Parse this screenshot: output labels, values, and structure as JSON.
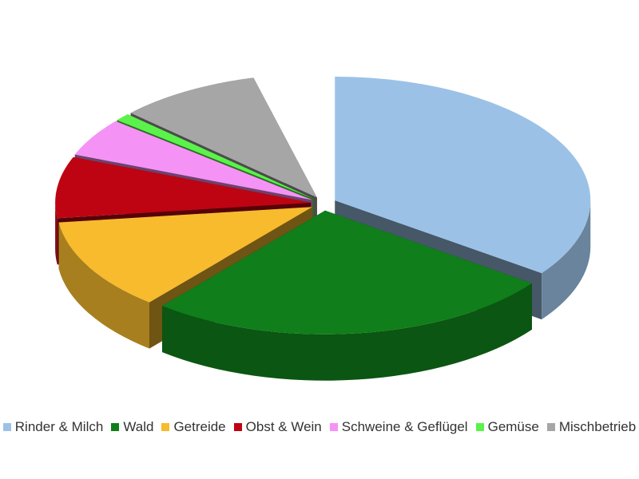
{
  "chart_data": {
    "type": "pie",
    "title": "",
    "three_d": true,
    "exploded": true,
    "start_angle_deg": -90,
    "direction": "clockwise",
    "legend_position": "bottom",
    "slices": [
      {
        "label": "Rinder & Milch",
        "value": 35,
        "color": "#9BC2E6"
      },
      {
        "label": "Wald",
        "value": 26,
        "color": "#107E1A"
      },
      {
        "label": "Getreide",
        "value": 12,
        "color": "#F7BB2D"
      },
      {
        "label": "Obst & Wein",
        "value": 8,
        "color": "#BE0412"
      },
      {
        "label": "Schweine & Geflügel",
        "value": 5,
        "color": "#F592F5"
      },
      {
        "label": "Gemüse",
        "value": 1,
        "color": "#5BF24B"
      },
      {
        "label": "Mischbetrieb",
        "value": 9,
        "color": "#A6A6A6"
      },
      {
        "label": "",
        "value": 4,
        "color": "#FFFFFF",
        "hidden": true
      }
    ]
  }
}
